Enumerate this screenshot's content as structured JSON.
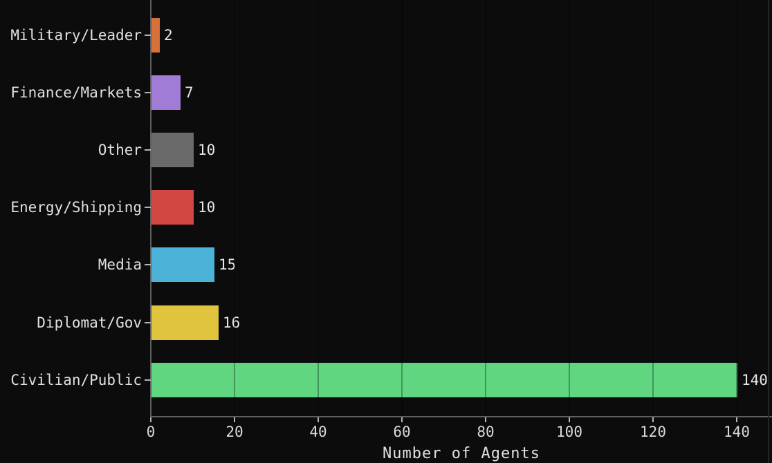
{
  "chart_data": {
    "type": "bar",
    "orientation": "horizontal",
    "title": "",
    "xlabel": "Number of Agents",
    "ylabel": "",
    "categories": [
      "Military/Leader",
      "Finance/Markets",
      "Other",
      "Energy/Shipping",
      "Media",
      "Diplomat/Gov",
      "Civilian/Public"
    ],
    "values": [
      2,
      7,
      10,
      10,
      15,
      16,
      140
    ],
    "value_labels": [
      "2",
      "7",
      "10",
      "10",
      "15",
      "16",
      "140"
    ],
    "bar_colors": [
      "#d8703a",
      "#a07cd6",
      "#6a6a6a",
      "#d24742",
      "#4db2d8",
      "#e0c43e",
      "#5fd67f"
    ],
    "x_ticks": [
      0,
      20,
      40,
      60,
      80,
      100,
      120,
      140
    ],
    "xlim": [
      0,
      148.4
    ],
    "grid": {
      "axis": "x",
      "style": "dark overlay lines visible over bars"
    },
    "legend": null,
    "colors": {
      "background": "#0c0c0c",
      "text": "#e0e0e0",
      "axis": "#5f5f5f",
      "tick": "#b5b5b5"
    }
  }
}
